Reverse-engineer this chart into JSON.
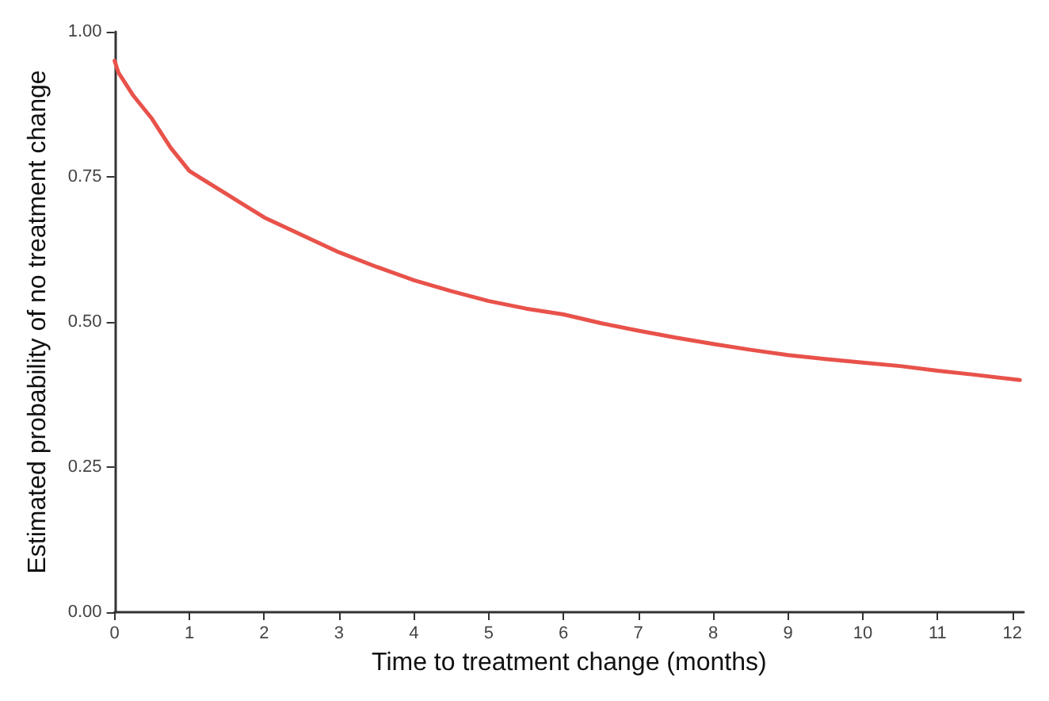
{
  "chart_data": {
    "type": "line",
    "xlabel": "Time to treatment change (months)",
    "ylabel": "Estimated probability of no treatment change",
    "x": [
      0,
      0.05,
      0.1,
      0.25,
      0.5,
      0.75,
      1,
      1.5,
      2,
      2.5,
      3,
      3.5,
      4,
      4.5,
      5,
      5.5,
      6,
      6.5,
      7,
      7.5,
      8,
      8.5,
      9,
      9.5,
      10,
      10.5,
      11,
      11.5,
      12.1
    ],
    "series": [
      {
        "color": "#e8524a",
        "values": [
          0.95,
          0.93,
          0.92,
          0.89,
          0.85,
          0.8,
          0.76,
          0.72,
          0.68,
          0.65,
          0.62,
          0.595,
          0.572,
          0.553,
          0.536,
          0.523,
          0.513,
          0.498,
          0.485,
          0.473,
          0.462,
          0.452,
          0.443,
          0.436,
          0.43,
          0.424,
          0.416,
          0.409,
          0.4
        ]
      }
    ],
    "xlim": [
      0,
      12.15
    ],
    "xticks": [
      0,
      1,
      2,
      3,
      4,
      5,
      6,
      7,
      8,
      9,
      10,
      11,
      12
    ],
    "ylim": [
      0,
      1
    ],
    "yticks": [
      {
        "value": 0,
        "label": "0.00"
      },
      {
        "value": 0.25,
        "label": "0.25"
      },
      {
        "value": 0.5,
        "label": "0.50"
      },
      {
        "value": 0.75,
        "label": "0.75"
      },
      {
        "value": 1,
        "label": "1.00"
      }
    ],
    "grid": false,
    "marker": "none",
    "line_style": "solid"
  }
}
